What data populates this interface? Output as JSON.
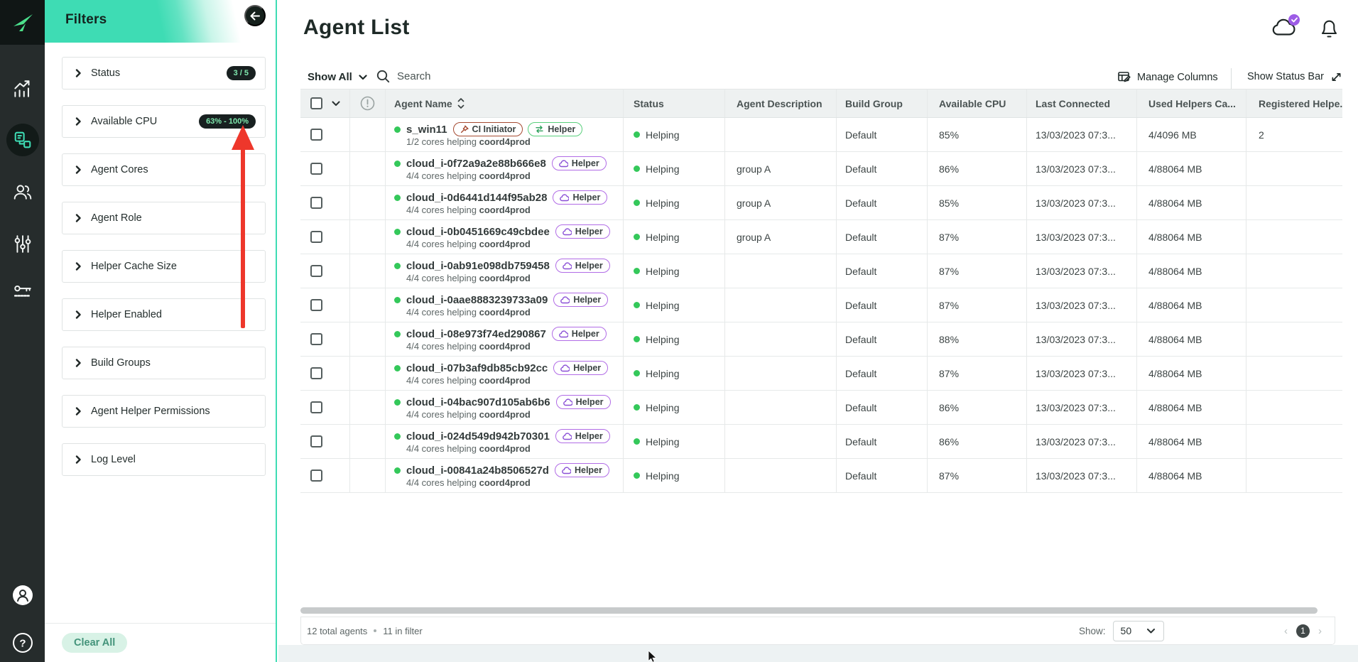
{
  "colors": {
    "accent": "#3edcb4",
    "status_green": "#34c85a",
    "filter_badge_bg": "#182020",
    "filter_badge_text": "#7fe9ae",
    "ci_badge_border": "#a54a31",
    "helper_green_border": "#59cf7c",
    "helper_purple_border": "#b16ce6",
    "annotation_arrow": "#ee372b"
  },
  "sidebar": {
    "icons": [
      "analytics-icon",
      "agent-list-icon",
      "users-icon",
      "preferences-icon",
      "api-key-icon"
    ],
    "selected": "agent-list-icon",
    "footer_icons": [
      "avatar-icon",
      "help-icon"
    ]
  },
  "filters": {
    "title": "Filters",
    "items": [
      {
        "label": "Status",
        "badge": "3 / 5"
      },
      {
        "label": "Available CPU",
        "badge": "63% - 100%"
      },
      {
        "label": "Agent Cores"
      },
      {
        "label": "Agent Role"
      },
      {
        "label": "Helper Cache Size"
      },
      {
        "label": "Helper Enabled"
      },
      {
        "label": "Build Groups"
      },
      {
        "label": "Agent Helper Permissions"
      },
      {
        "label": "Log Level"
      }
    ],
    "clear_all_label": "Clear All"
  },
  "header": {
    "title": "Agent List",
    "filter_dropdown": "Show All",
    "search_placeholder": "Search",
    "manage_columns_label": "Manage Columns",
    "show_status_bar_label": "Show Status Bar"
  },
  "table": {
    "columns": [
      "Agent Name",
      "Status",
      "Agent Description",
      "Build Group",
      "Available CPU",
      "Last Connected",
      "Used Helpers Ca...",
      "Registered Helpe..."
    ],
    "rows": [
      {
        "name": "s_win11",
        "badges": [
          {
            "label": "CI Initiator",
            "type": "ci"
          },
          {
            "label": "Helper",
            "type": "helper-green"
          }
        ],
        "sub_prefix": "1/2 cores helping ",
        "sub_bold": "coord4prod",
        "status": "Helping",
        "description": "",
        "build_group": "Default",
        "available_cpu": "85%",
        "last_connected": "13/03/2023 07:3...",
        "used_helpers": "4/4096 MB",
        "registered_helpers": "2"
      },
      {
        "name": "cloud_i-0f72a9a2e88b666e8",
        "badges": [
          {
            "label": "Helper",
            "type": "helper-purple"
          }
        ],
        "sub_prefix": "4/4 cores helping ",
        "sub_bold": "coord4prod",
        "status": "Helping",
        "description": "group A",
        "build_group": "Default",
        "available_cpu": "86%",
        "last_connected": "13/03/2023 07:3...",
        "used_helpers": "4/88064 MB",
        "registered_helpers": ""
      },
      {
        "name": "cloud_i-0d6441d144f95ab28",
        "badges": [
          {
            "label": "Helper",
            "type": "helper-purple"
          }
        ],
        "sub_prefix": "4/4 cores helping ",
        "sub_bold": "coord4prod",
        "status": "Helping",
        "description": "group A",
        "build_group": "Default",
        "available_cpu": "85%",
        "last_connected": "13/03/2023 07:3...",
        "used_helpers": "4/88064 MB",
        "registered_helpers": ""
      },
      {
        "name": "cloud_i-0b0451669c49cbdee",
        "badges": [
          {
            "label": "Helper",
            "type": "helper-purple"
          }
        ],
        "sub_prefix": "4/4 cores helping ",
        "sub_bold": "coord4prod",
        "status": "Helping",
        "description": "group A",
        "build_group": "Default",
        "available_cpu": "87%",
        "last_connected": "13/03/2023 07:3...",
        "used_helpers": "4/88064 MB",
        "registered_helpers": ""
      },
      {
        "name": "cloud_i-0ab91e098db759458",
        "badges": [
          {
            "label": "Helper",
            "type": "helper-purple"
          }
        ],
        "sub_prefix": "4/4 cores helping ",
        "sub_bold": "coord4prod",
        "status": "Helping",
        "description": "",
        "build_group": "Default",
        "available_cpu": "87%",
        "last_connected": "13/03/2023 07:3...",
        "used_helpers": "4/88064 MB",
        "registered_helpers": ""
      },
      {
        "name": "cloud_i-0aae8883239733a09",
        "badges": [
          {
            "label": "Helper",
            "type": "helper-purple"
          }
        ],
        "sub_prefix": "4/4 cores helping ",
        "sub_bold": "coord4prod",
        "status": "Helping",
        "description": "",
        "build_group": "Default",
        "available_cpu": "87%",
        "last_connected": "13/03/2023 07:3...",
        "used_helpers": "4/88064 MB",
        "registered_helpers": ""
      },
      {
        "name": "cloud_i-08e973f74ed290867",
        "badges": [
          {
            "label": "Helper",
            "type": "helper-purple"
          }
        ],
        "sub_prefix": "4/4 cores helping ",
        "sub_bold": "coord4prod",
        "status": "Helping",
        "description": "",
        "build_group": "Default",
        "available_cpu": "88%",
        "last_connected": "13/03/2023 07:3...",
        "used_helpers": "4/88064 MB",
        "registered_helpers": ""
      },
      {
        "name": "cloud_i-07b3af9db85cb92cc",
        "badges": [
          {
            "label": "Helper",
            "type": "helper-purple"
          }
        ],
        "sub_prefix": "4/4 cores helping ",
        "sub_bold": "coord4prod",
        "status": "Helping",
        "description": "",
        "build_group": "Default",
        "available_cpu": "87%",
        "last_connected": "13/03/2023 07:3...",
        "used_helpers": "4/88064 MB",
        "registered_helpers": ""
      },
      {
        "name": "cloud_i-04bac907d105ab6b6",
        "badges": [
          {
            "label": "Helper",
            "type": "helper-purple"
          }
        ],
        "sub_prefix": "4/4 cores helping ",
        "sub_bold": "coord4prod",
        "status": "Helping",
        "description": "",
        "build_group": "Default",
        "available_cpu": "86%",
        "last_connected": "13/03/2023 07:3...",
        "used_helpers": "4/88064 MB",
        "registered_helpers": ""
      },
      {
        "name": "cloud_i-024d549d942b70301",
        "badges": [
          {
            "label": "Helper",
            "type": "helper-purple"
          }
        ],
        "sub_prefix": "4/4 cores helping ",
        "sub_bold": "coord4prod",
        "status": "Helping",
        "description": "",
        "build_group": "Default",
        "available_cpu": "86%",
        "last_connected": "13/03/2023 07:3...",
        "used_helpers": "4/88064 MB",
        "registered_helpers": ""
      },
      {
        "name": "cloud_i-00841a24b8506527d",
        "badges": [
          {
            "label": "Helper",
            "type": "helper-purple"
          }
        ],
        "sub_prefix": "4/4 cores helping ",
        "sub_bold": "coord4prod",
        "status": "Helping",
        "description": "",
        "build_group": "Default",
        "available_cpu": "87%",
        "last_connected": "13/03/2023 07:3...",
        "used_helpers": "4/88064 MB",
        "registered_helpers": ""
      }
    ]
  },
  "footer": {
    "total_label": "12 total agents",
    "in_filter_label": "11 in filter",
    "show_label": "Show:",
    "page_size": "50",
    "current_page": "1"
  }
}
